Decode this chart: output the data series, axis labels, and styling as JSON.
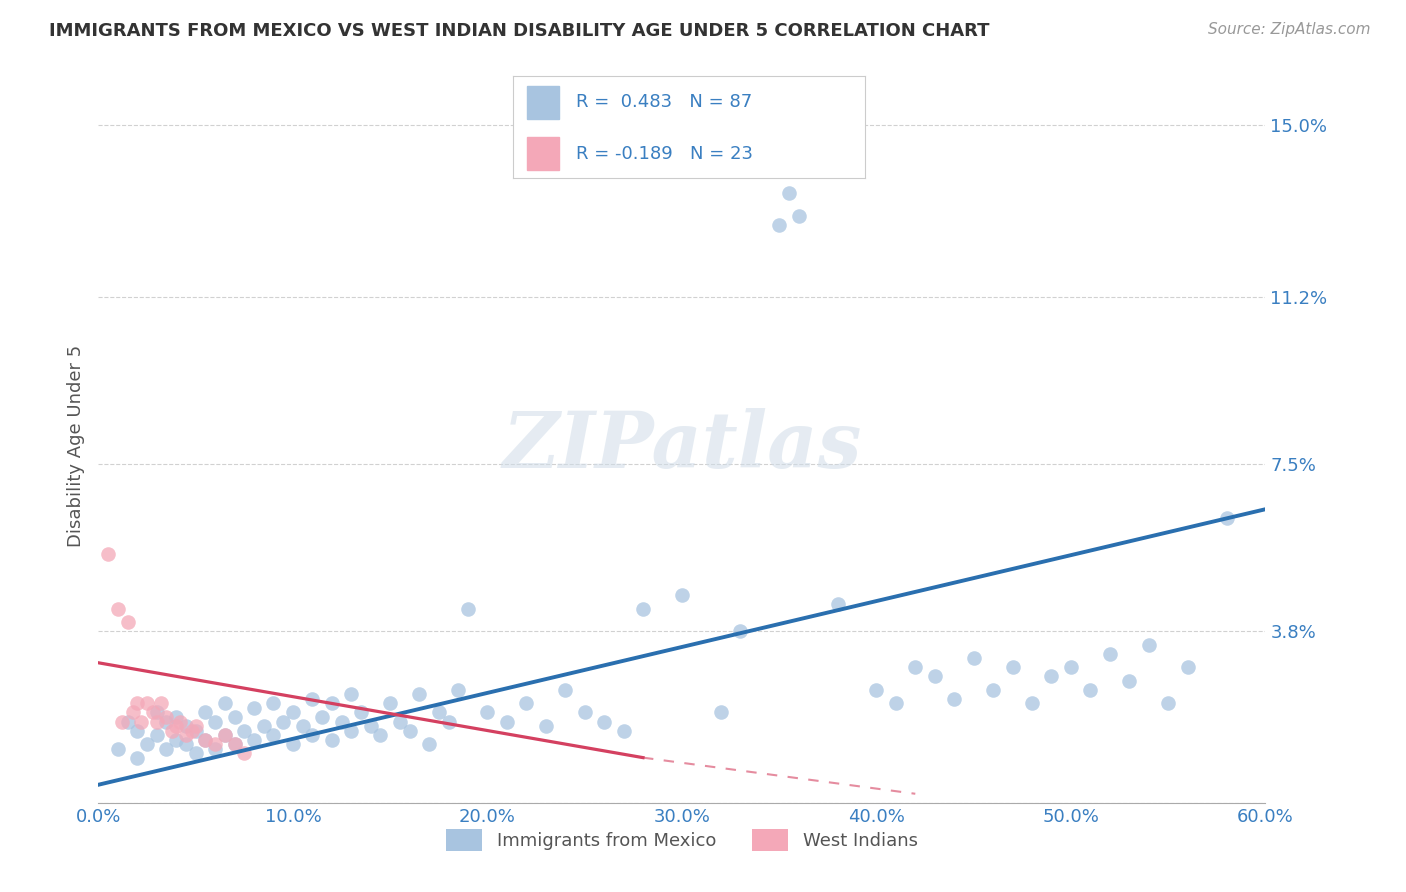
{
  "title": "IMMIGRANTS FROM MEXICO VS WEST INDIAN DISABILITY AGE UNDER 5 CORRELATION CHART",
  "source": "Source: ZipAtlas.com",
  "ylabel": "Disability Age Under 5",
  "xlim": [
    0,
    0.6
  ],
  "ylim": [
    0,
    0.158
  ],
  "yticks": [
    0,
    0.038,
    0.075,
    0.112,
    0.15
  ],
  "ytick_labels": [
    "",
    "3.8%",
    "7.5%",
    "11.2%",
    "15.0%"
  ],
  "xticks": [
    0.0,
    0.1,
    0.2,
    0.3,
    0.4,
    0.5,
    0.6
  ],
  "xtick_labels": [
    "0.0%",
    "10.0%",
    "20.0%",
    "30.0%",
    "40.0%",
    "50.0%",
    "60.0%"
  ],
  "mexico_color": "#a8c4e0",
  "mexico_line_color": "#2a6faf",
  "westindian_color": "#f4a8b8",
  "westindian_line_color": "#d44060",
  "background_color": "#ffffff",
  "grid_color": "#cccccc",
  "axis_label_color": "#3a7fc1",
  "title_color": "#333333",
  "mexico_x": [
    0.01,
    0.015,
    0.02,
    0.02,
    0.025,
    0.03,
    0.03,
    0.035,
    0.035,
    0.04,
    0.04,
    0.045,
    0.045,
    0.05,
    0.05,
    0.055,
    0.055,
    0.06,
    0.06,
    0.065,
    0.065,
    0.07,
    0.07,
    0.075,
    0.08,
    0.08,
    0.085,
    0.09,
    0.09,
    0.095,
    0.1,
    0.1,
    0.105,
    0.11,
    0.11,
    0.115,
    0.12,
    0.12,
    0.125,
    0.13,
    0.13,
    0.135,
    0.14,
    0.145,
    0.15,
    0.155,
    0.16,
    0.165,
    0.17,
    0.175,
    0.18,
    0.185,
    0.19,
    0.2,
    0.21,
    0.22,
    0.23,
    0.24,
    0.25,
    0.26,
    0.27,
    0.28,
    0.3,
    0.32,
    0.33,
    0.35,
    0.355,
    0.36,
    0.38,
    0.4,
    0.41,
    0.42,
    0.43,
    0.44,
    0.45,
    0.46,
    0.47,
    0.48,
    0.49,
    0.5,
    0.51,
    0.52,
    0.53,
    0.54,
    0.55,
    0.56,
    0.58
  ],
  "mexico_y": [
    0.012,
    0.018,
    0.01,
    0.016,
    0.013,
    0.015,
    0.02,
    0.012,
    0.018,
    0.014,
    0.019,
    0.013,
    0.017,
    0.011,
    0.016,
    0.014,
    0.02,
    0.012,
    0.018,
    0.015,
    0.022,
    0.013,
    0.019,
    0.016,
    0.014,
    0.021,
    0.017,
    0.015,
    0.022,
    0.018,
    0.013,
    0.02,
    0.017,
    0.015,
    0.023,
    0.019,
    0.014,
    0.022,
    0.018,
    0.016,
    0.024,
    0.02,
    0.017,
    0.015,
    0.022,
    0.018,
    0.016,
    0.024,
    0.013,
    0.02,
    0.018,
    0.025,
    0.043,
    0.02,
    0.018,
    0.022,
    0.017,
    0.025,
    0.02,
    0.018,
    0.016,
    0.043,
    0.046,
    0.02,
    0.038,
    0.128,
    0.135,
    0.13,
    0.044,
    0.025,
    0.022,
    0.03,
    0.028,
    0.023,
    0.032,
    0.025,
    0.03,
    0.022,
    0.028,
    0.03,
    0.025,
    0.033,
    0.027,
    0.035,
    0.022,
    0.03,
    0.063
  ],
  "westindian_x": [
    0.005,
    0.01,
    0.012,
    0.015,
    0.018,
    0.02,
    0.022,
    0.025,
    0.028,
    0.03,
    0.032,
    0.035,
    0.038,
    0.04,
    0.042,
    0.045,
    0.048,
    0.05,
    0.055,
    0.06,
    0.065,
    0.07,
    0.075
  ],
  "westindian_y": [
    0.055,
    0.043,
    0.018,
    0.04,
    0.02,
    0.022,
    0.018,
    0.022,
    0.02,
    0.018,
    0.022,
    0.019,
    0.016,
    0.017,
    0.018,
    0.015,
    0.016,
    0.017,
    0.014,
    0.013,
    0.015,
    0.013,
    0.011
  ],
  "watermark": "ZIPatlas"
}
